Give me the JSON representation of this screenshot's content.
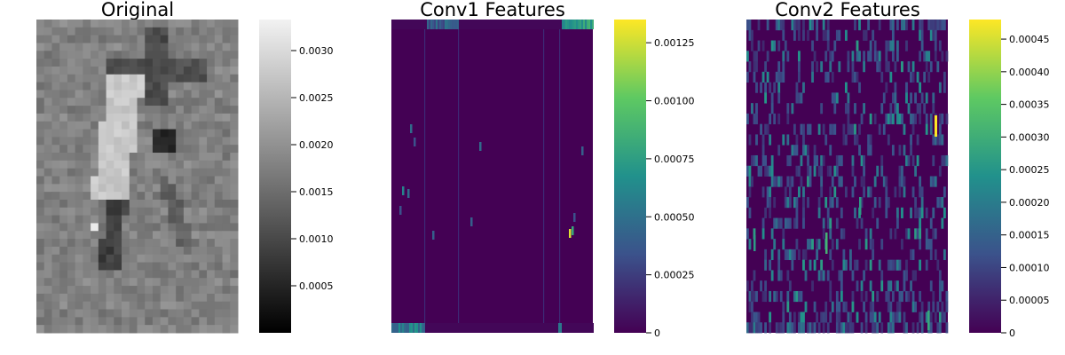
{
  "chart_data": [
    {
      "type": "heatmap",
      "title": "Original",
      "colormap": "grays",
      "colormap_stops": [
        "#000000",
        "#f2f2f2"
      ],
      "grid": false,
      "axes_visible": false,
      "clim": [
        0.0,
        0.00333
      ],
      "colorbar_ticks": [
        0.0005,
        0.001,
        0.0015,
        0.002,
        0.0025,
        0.003
      ],
      "colorbar_labels": [
        "0.0005",
        "0.0010",
        "0.0015",
        "0.0020",
        "0.0025",
        "0.0030"
      ]
    },
    {
      "type": "heatmap",
      "title": "Conv1 Features",
      "colormap": "viridis",
      "colormap_stops": [
        "#440154",
        "#3b528b",
        "#21918c",
        "#5ec962",
        "#fde725"
      ],
      "grid": false,
      "axes_visible": false,
      "clim": [
        0.0,
        0.00135
      ],
      "colorbar_ticks": [
        0,
        0.00025,
        0.0005,
        0.00075,
        0.001,
        0.00125
      ],
      "colorbar_labels": [
        "0",
        "0.00025",
        "0.00050",
        "0.00075",
        "0.00100",
        "0.00125"
      ]
    },
    {
      "type": "heatmap",
      "title": "Conv2 Features",
      "colormap": "viridis",
      "colormap_stops": [
        "#440154",
        "#3b528b",
        "#21918c",
        "#5ec962",
        "#fde725"
      ],
      "grid": false,
      "axes_visible": false,
      "clim": [
        0.0,
        0.00048
      ],
      "colorbar_ticks": [
        0,
        5e-05,
        0.0001,
        0.00015,
        0.0002,
        0.00025,
        0.0003,
        0.00035,
        0.0004,
        0.00045
      ],
      "colorbar_labels": [
        "0",
        "0.00005",
        "0.00010",
        "0.00015",
        "0.00020",
        "0.00025",
        "0.00030",
        "0.00035",
        "0.00040",
        "0.00045"
      ]
    }
  ]
}
